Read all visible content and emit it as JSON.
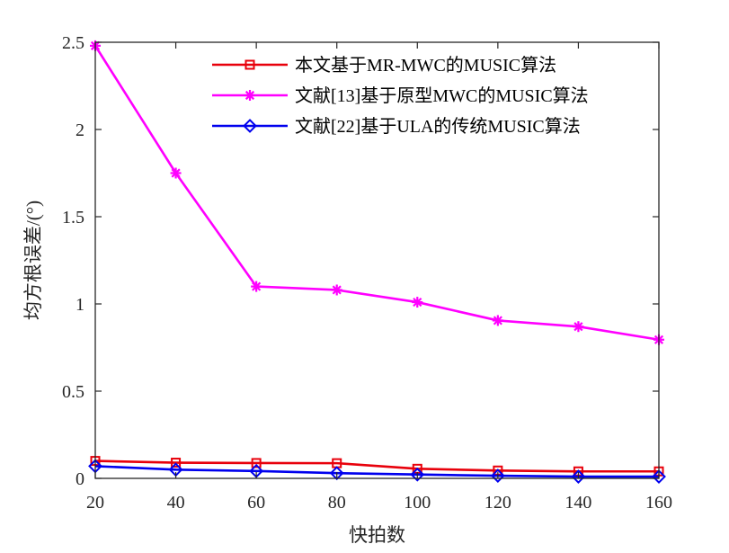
{
  "chart_data": {
    "type": "line",
    "title": "",
    "xlabel": "快拍数",
    "ylabel": "均方根误差/(°)",
    "x": [
      20,
      40,
      60,
      80,
      100,
      120,
      140,
      160
    ],
    "xlim": [
      20,
      160
    ],
    "ylim": [
      0,
      2.5
    ],
    "xticks": [
      20,
      40,
      60,
      80,
      100,
      120,
      140,
      160
    ],
    "yticks": [
      0,
      0.5,
      1,
      1.5,
      2,
      2.5
    ],
    "xtick_labels": [
      "20",
      "40",
      "60",
      "80",
      "100",
      "120",
      "140",
      "160"
    ],
    "ytick_labels": [
      "0",
      "0.5",
      "1",
      "1.5",
      "2",
      "2.5"
    ],
    "grid": false,
    "legend_position": "top-right",
    "series": [
      {
        "name": "本文基于MR-MWC的MUSIC算法",
        "color": "#e8000b",
        "marker": "square",
        "values": [
          0.1,
          0.09,
          0.088,
          0.087,
          0.055,
          0.045,
          0.04,
          0.04
        ]
      },
      {
        "name": "文献[13]基于原型MWC的MUSIC算法",
        "color": "#ff00ff",
        "marker": "star",
        "values": [
          2.48,
          1.75,
          1.1,
          1.08,
          1.01,
          0.905,
          0.87,
          0.795
        ]
      },
      {
        "name": "文献[22]基于ULA的传统MUSIC算法",
        "color": "#0000ee",
        "marker": "diamond",
        "values": [
          0.07,
          0.05,
          0.042,
          0.03,
          0.022,
          0.015,
          0.01,
          0.01
        ]
      }
    ]
  }
}
